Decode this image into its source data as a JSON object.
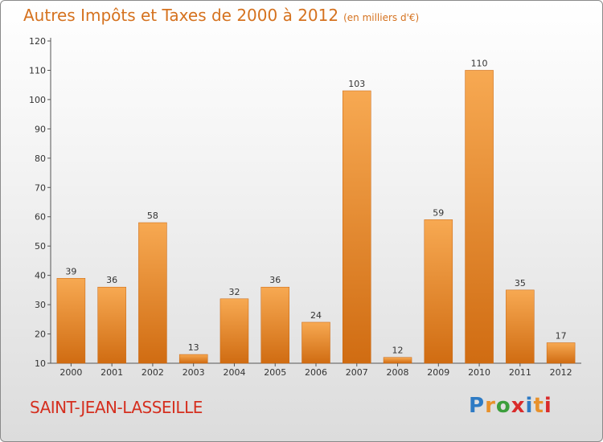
{
  "title": "Autres Impôts et Taxes de 2000 à 2012",
  "unit_note": "(en milliers d'€)",
  "commune": "SAINT-JEAN-LASSEILLE",
  "logo": {
    "text": "Proxiti",
    "letter_colors": [
      "#2e7bc4",
      "#e8912b",
      "#3c9e3c",
      "#d92b2b",
      "#2e7bc4",
      "#e8912b",
      "#d92b2b"
    ]
  },
  "colors": {
    "bar_light": "#f7a952",
    "bar_dark": "#d06c12",
    "axis": "#555555",
    "text": "#333333"
  },
  "chart_data": {
    "type": "bar",
    "categories": [
      "2000",
      "2001",
      "2002",
      "2003",
      "2004",
      "2005",
      "2006",
      "2007",
      "2008",
      "2009",
      "2010",
      "2011",
      "2012"
    ],
    "values": [
      39,
      36,
      58,
      13,
      32,
      36,
      24,
      103,
      12,
      59,
      110,
      35,
      17
    ],
    "ylim": [
      10,
      120
    ],
    "yticks": [
      10,
      20,
      30,
      40,
      50,
      60,
      70,
      80,
      90,
      100,
      110,
      120
    ],
    "data_labels": true,
    "grid": false
  }
}
